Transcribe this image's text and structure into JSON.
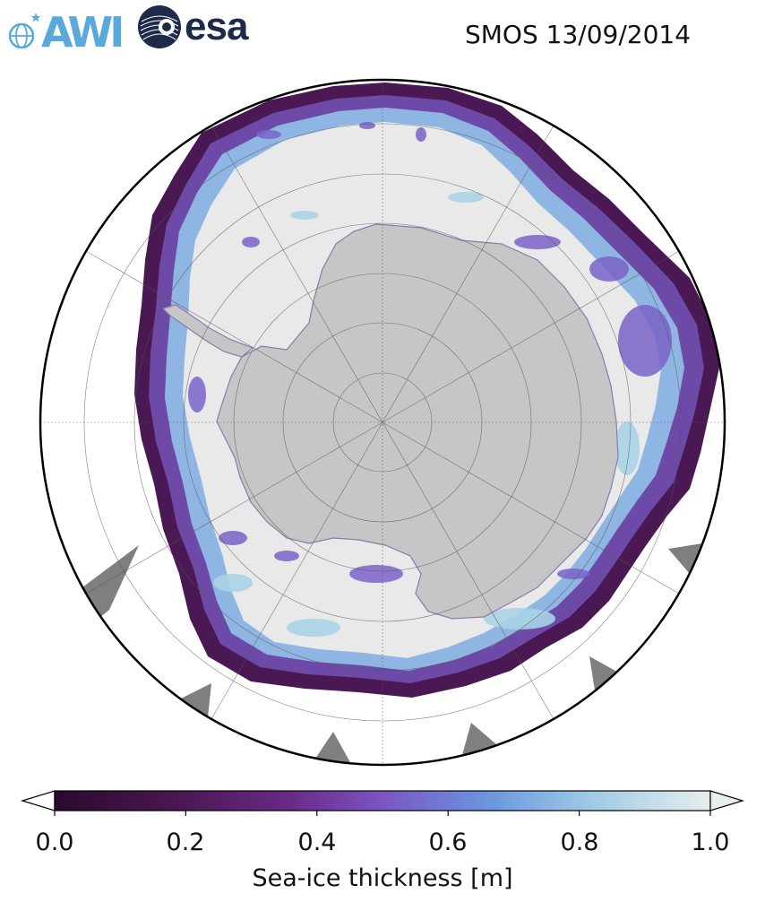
{
  "header": {
    "awi_logo_text": "AWI",
    "esa_logo_text": "esa",
    "title": "SMOS 13/09/2014"
  },
  "colorbar": {
    "label": "Sea-ice thickness [m]",
    "ticks": [
      "0.0",
      "0.2",
      "0.4",
      "0.6",
      "0.8",
      "1.0"
    ],
    "min": 0.0,
    "max": 1.0,
    "extend": "both",
    "colormap_stops": [
      "#2b0a2e",
      "#4a1650",
      "#6a2a86",
      "#7b55c4",
      "#6a95e0",
      "#9fcbe4",
      "#e6eeee"
    ]
  },
  "map": {
    "projection": "south-polar-stereographic",
    "land_color": "#c6c6c6",
    "thick_ice_color": "#e9e9e9",
    "no_data_color": "#7f7f7f",
    "ocean_color": "#ffffff",
    "graticule": "on"
  },
  "colors": {
    "awi_blue": "#5aa9dc",
    "esa_navy": "#1e2a4a"
  }
}
